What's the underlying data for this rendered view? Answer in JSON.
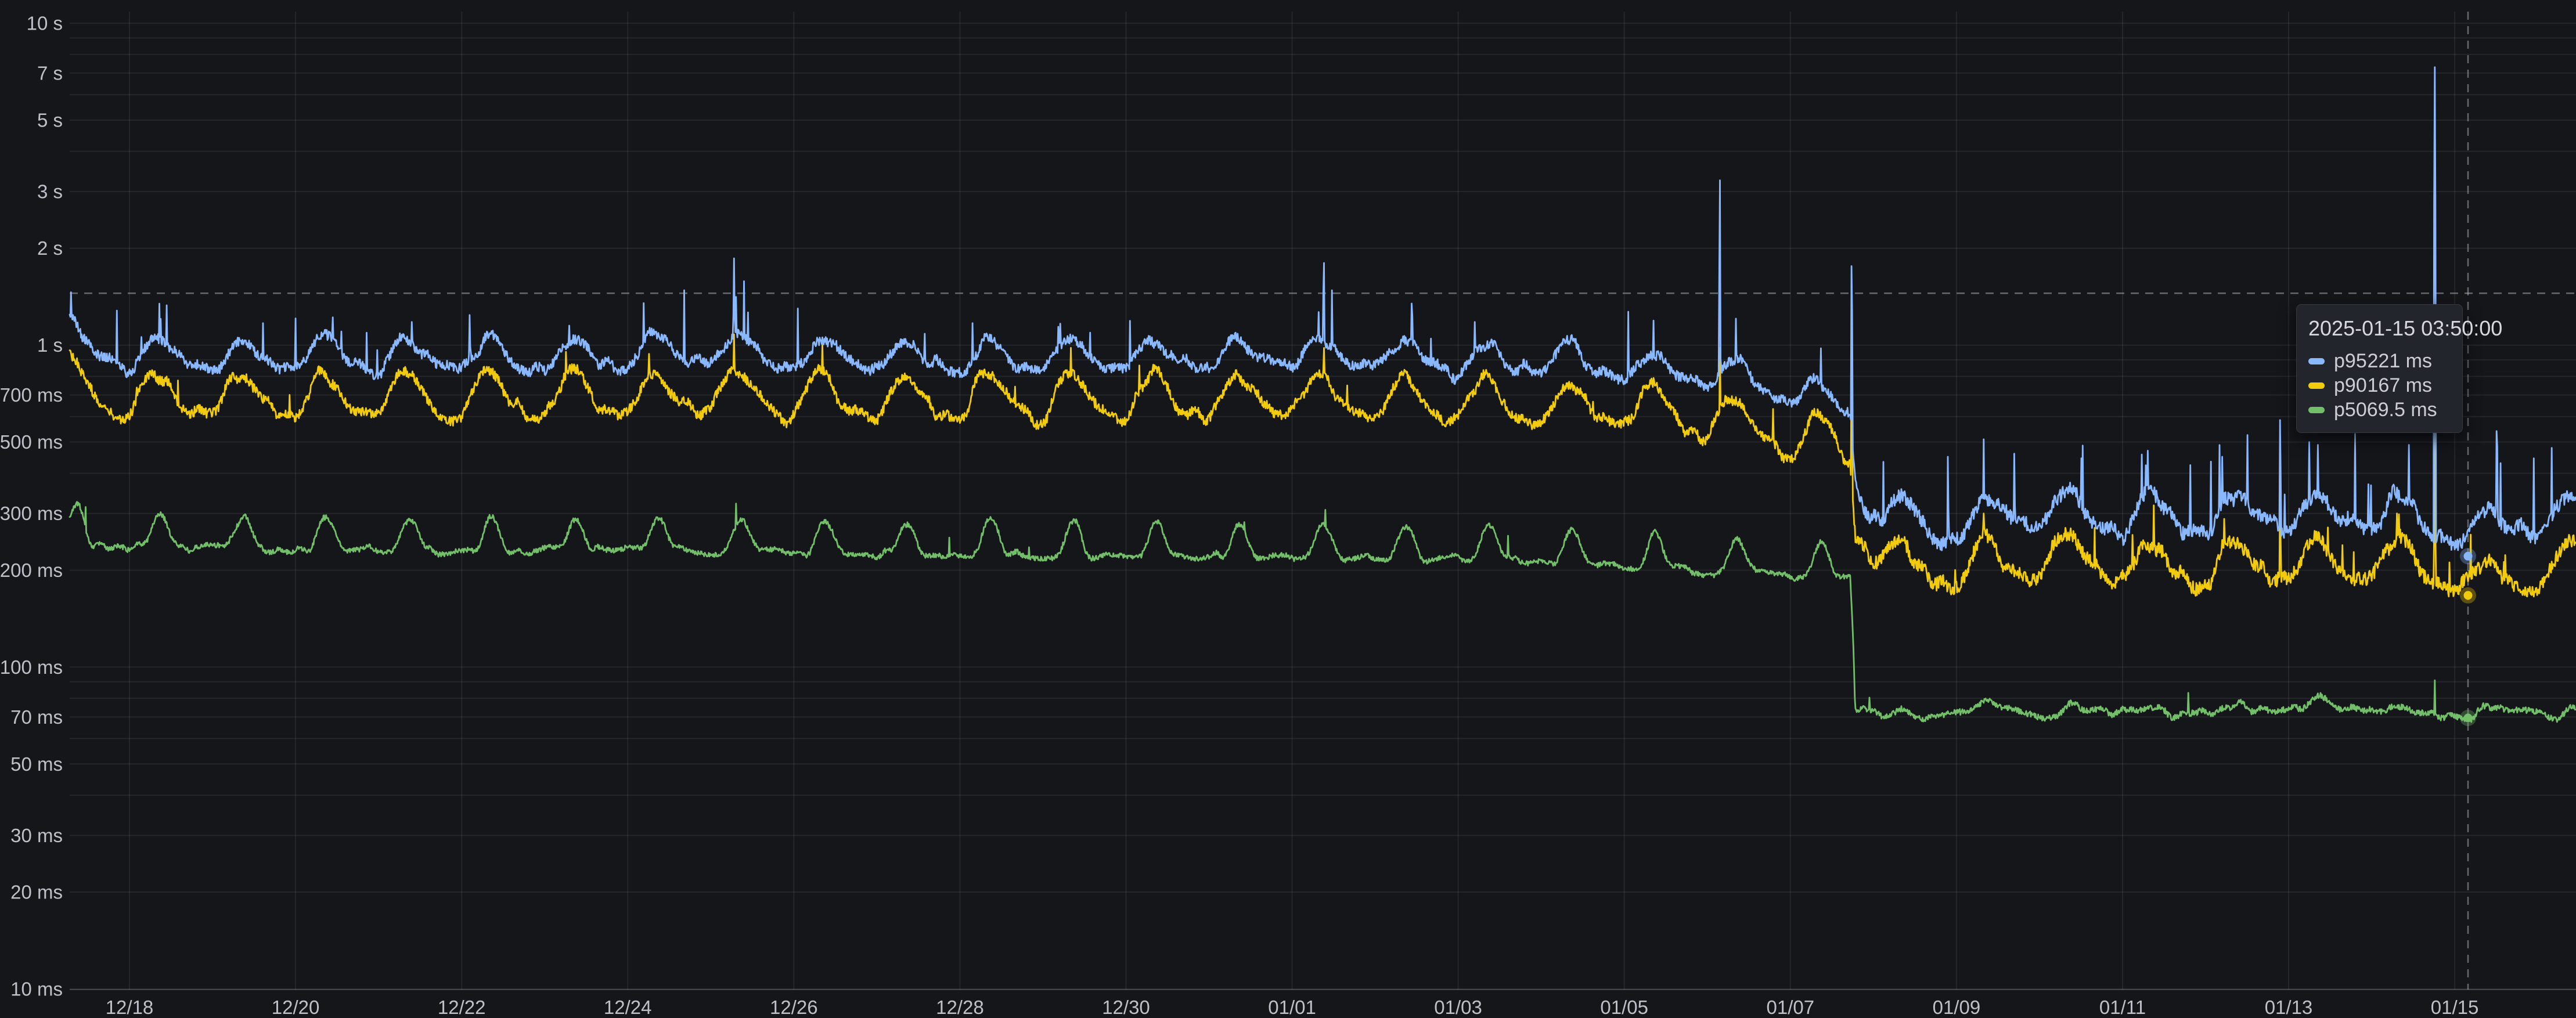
{
  "panel": {
    "background": "#15161a",
    "text_color": "#bfc1c9",
    "grid_color": "rgba(240,250,255,0.07)",
    "axis_line_color": "rgba(240,250,255,0.18)",
    "crosshair_color": "rgba(200,205,215,0.45)"
  },
  "chart_data": {
    "type": "line",
    "y_axis": {
      "scale": "log10",
      "unit": "ms",
      "min_ms": 10,
      "max_ms": 10000,
      "labeled_ticks": [
        {
          "ms": 10000,
          "label": "10 s"
        },
        {
          "ms": 7000,
          "label": "7 s"
        },
        {
          "ms": 5000,
          "label": "5 s"
        },
        {
          "ms": 3000,
          "label": "3 s"
        },
        {
          "ms": 2000,
          "label": "2 s"
        },
        {
          "ms": 1000,
          "label": "1 s"
        },
        {
          "ms": 700,
          "label": "700 ms"
        },
        {
          "ms": 500,
          "label": "500 ms"
        },
        {
          "ms": 300,
          "label": "300 ms"
        },
        {
          "ms": 200,
          "label": "200 ms"
        },
        {
          "ms": 100,
          "label": "100 ms"
        },
        {
          "ms": 70,
          "label": "70 ms"
        },
        {
          "ms": 50,
          "label": "50 ms"
        },
        {
          "ms": 30,
          "label": "30 ms"
        },
        {
          "ms": 20,
          "label": "20 ms"
        },
        {
          "ms": 10,
          "label": "10 ms"
        }
      ]
    },
    "x_axis": {
      "start_day": 0.28,
      "end_day": 30.46,
      "sample_step_day": 0.008,
      "ticks": [
        {
          "day": 1,
          "label": "12/18"
        },
        {
          "day": 3,
          "label": "12/20"
        },
        {
          "day": 5,
          "label": "12/22"
        },
        {
          "day": 7,
          "label": "12/24"
        },
        {
          "day": 9,
          "label": "12/26"
        },
        {
          "day": 11,
          "label": "12/28"
        },
        {
          "day": 13,
          "label": "12/30"
        },
        {
          "day": 15,
          "label": "01/01"
        },
        {
          "day": 17,
          "label": "01/03"
        },
        {
          "day": 19,
          "label": "01/05"
        },
        {
          "day": 21,
          "label": "01/07"
        },
        {
          "day": 23,
          "label": "01/09"
        },
        {
          "day": 25,
          "label": "01/11"
        },
        {
          "day": 27,
          "label": "01/13"
        },
        {
          "day": 29,
          "label": "01/15"
        }
      ]
    },
    "step_change_day": 21.75,
    "series": [
      {
        "name": "p95",
        "color": "#8AB8FF",
        "seed": 11,
        "base_keyframes_day_ms": [
          [
            0.28,
            1120
          ],
          [
            0.42,
            960
          ],
          [
            1,
            935
          ],
          [
            2,
            920
          ],
          [
            3,
            935
          ],
          [
            4,
            920
          ],
          [
            5,
            930
          ],
          [
            6,
            915
          ],
          [
            7,
            945
          ],
          [
            8,
            975
          ],
          [
            9,
            930
          ],
          [
            10,
            915
          ],
          [
            11,
            920
          ],
          [
            12,
            910
          ],
          [
            13,
            925
          ],
          [
            14,
            915
          ],
          [
            15,
            955
          ],
          [
            16,
            925
          ],
          [
            17,
            905
          ],
          [
            18,
            890
          ],
          [
            19,
            870
          ],
          [
            20,
            830
          ],
          [
            20.7,
            760
          ],
          [
            21.4,
            690
          ],
          [
            21.72,
            650
          ],
          [
            21.78,
            400
          ],
          [
            21.95,
            330
          ],
          [
            22.3,
            285
          ],
          [
            22.8,
            275
          ],
          [
            23.5,
            300
          ],
          [
            24.4,
            308
          ],
          [
            25.4,
            290
          ],
          [
            26.4,
            295
          ],
          [
            27.4,
            308
          ],
          [
            28.3,
            300
          ],
          [
            28.9,
            280
          ],
          [
            29.3,
            262
          ],
          [
            29.8,
            290
          ],
          [
            30.2,
            288
          ],
          [
            30.46,
            300
          ]
        ],
        "daily_wave_pre": {
          "amp": 0.105,
          "phase": 0.12,
          "harm": 0.3
        },
        "daily_wave_post": {
          "amp": 0.13,
          "phase": 0.12,
          "harm": 0.3
        },
        "noise_pre": {
          "smooth": 0.045,
          "jitter": 0.035,
          "spike_p": 0.006,
          "spike_gain": [
            1.12,
            1.35
          ]
        },
        "noise_post": {
          "smooth": 0.05,
          "jitter": 0.05,
          "spike_p": 0.02,
          "spike_gain": [
            1.15,
            1.8
          ]
        },
        "spikes_day_ms_w": [
          [
            0.3,
            1460,
            0.018
          ],
          [
            0.85,
            1280,
            0.022
          ],
          [
            1.45,
            1330,
            0.025
          ],
          [
            3.0,
            1210,
            0.025
          ],
          [
            3.45,
            1220,
            0.018
          ],
          [
            4.4,
            1180,
            0.02
          ],
          [
            5.1,
            1240,
            0.025
          ],
          [
            6.3,
            1150,
            0.02
          ],
          [
            7.68,
            1480,
            0.022
          ],
          [
            8.28,
            1860,
            0.03
          ],
          [
            8.4,
            1580,
            0.018
          ],
          [
            9.05,
            1300,
            0.022
          ],
          [
            11.15,
            1170,
            0.02
          ],
          [
            13.05,
            1190,
            0.022
          ],
          [
            15.38,
            1800,
            0.026
          ],
          [
            15.48,
            1480,
            0.016
          ],
          [
            17.2,
            1180,
            0.02
          ],
          [
            19.05,
            1270,
            0.022
          ],
          [
            20.15,
            3250,
            0.016
          ],
          [
            21.74,
            1760,
            0.018
          ],
          [
            22.9,
            450,
            0.016
          ],
          [
            23.33,
            510,
            0.016
          ],
          [
            23.7,
            460,
            0.016
          ],
          [
            24.5,
            445,
            0.016
          ],
          [
            25.3,
            470,
            0.016
          ],
          [
            26.2,
            450,
            0.016
          ],
          [
            26.9,
            585,
            0.016
          ],
          [
            27.25,
            500,
            0.016
          ],
          [
            27.8,
            530,
            0.016
          ],
          [
            28.45,
            490,
            0.016
          ],
          [
            28.76,
            7300,
            0.015
          ],
          [
            29.55,
            430,
            0.016
          ],
          [
            29.95,
            445,
            0.016
          ]
        ]
      },
      {
        "name": "p90",
        "color": "#F2CC0C",
        "seed": 23,
        "base_keyframes_day_ms": [
          [
            0.28,
            830
          ],
          [
            0.5,
            710
          ],
          [
            1,
            690
          ],
          [
            3,
            690
          ],
          [
            5,
            680
          ],
          [
            7,
            700
          ],
          [
            8,
            725
          ],
          [
            9,
            690
          ],
          [
            11,
            680
          ],
          [
            13,
            680
          ],
          [
            15,
            705
          ],
          [
            16,
            685
          ],
          [
            17,
            670
          ],
          [
            18,
            655
          ],
          [
            19,
            640
          ],
          [
            20,
            600
          ],
          [
            20.7,
            545
          ],
          [
            21.4,
            500
          ],
          [
            21.72,
            480
          ],
          [
            21.78,
            290
          ],
          [
            21.95,
            250
          ],
          [
            22.3,
            210
          ],
          [
            22.8,
            200
          ],
          [
            23.5,
            215
          ],
          [
            24.4,
            222
          ],
          [
            25.4,
            205
          ],
          [
            26.4,
            208
          ],
          [
            27.4,
            218
          ],
          [
            28.3,
            212
          ],
          [
            28.9,
            195
          ],
          [
            29.3,
            178
          ],
          [
            29.8,
            200
          ],
          [
            30.2,
            195
          ],
          [
            30.46,
            225
          ]
        ],
        "daily_wave_pre": {
          "amp": 0.155,
          "phase": 0.1,
          "harm": 0.25
        },
        "daily_wave_post": {
          "amp": 0.15,
          "phase": 0.1,
          "harm": 0.25
        },
        "noise_pre": {
          "smooth": 0.05,
          "jitter": 0.035,
          "spike_p": 0.004,
          "spike_gain": [
            1.1,
            1.25
          ]
        },
        "noise_post": {
          "smooth": 0.05,
          "jitter": 0.05,
          "spike_p": 0.012,
          "spike_gain": [
            1.1,
            1.5
          ]
        },
        "spikes_day_ms_w": [
          [
            0.3,
            920,
            0.02
          ],
          [
            8.28,
            1080,
            0.03
          ],
          [
            15.38,
            980,
            0.025
          ],
          [
            20.15,
            980,
            0.015
          ],
          [
            21.74,
            900,
            0.02
          ],
          [
            23.33,
            300,
            0.02
          ],
          [
            26.9,
            330,
            0.02
          ],
          [
            28.3,
            300,
            0.015
          ],
          [
            28.76,
            550,
            0.018
          ]
        ]
      },
      {
        "name": "p50",
        "color": "#73BF69",
        "seed": 37,
        "base_keyframes_day_ms": [
          [
            0.28,
            262
          ],
          [
            0.5,
            247
          ],
          [
            1,
            244
          ],
          [
            3,
            240
          ],
          [
            5,
            237
          ],
          [
            7,
            240
          ],
          [
            9,
            235
          ],
          [
            11,
            232
          ],
          [
            13,
            228
          ],
          [
            15,
            231
          ],
          [
            17,
            224
          ],
          [
            18,
            220
          ],
          [
            19,
            213
          ],
          [
            20,
            205
          ],
          [
            21,
            199
          ],
          [
            21.72,
            196
          ],
          [
            21.78,
            74
          ],
          [
            22.3,
            72
          ],
          [
            22.6,
            69
          ],
          [
            23,
            73
          ],
          [
            23.5,
            76
          ],
          [
            24,
            72
          ],
          [
            24.5,
            73
          ],
          [
            25,
            74
          ],
          [
            25.5,
            72
          ],
          [
            26,
            73
          ],
          [
            26.5,
            74
          ],
          [
            27,
            75
          ],
          [
            27.3,
            78
          ],
          [
            27.7,
            76
          ],
          [
            28.2,
            74
          ],
          [
            28.7,
            73
          ],
          [
            29.16,
            70
          ],
          [
            29.5,
            75
          ],
          [
            29.9,
            74
          ],
          [
            30.25,
            70
          ],
          [
            30.46,
            73
          ]
        ],
        "daily_wave_pre": {
          "type": "bump",
          "amp": 0.26,
          "exp": 3,
          "phase": 0.12,
          "shift": -0.035
        },
        "daily_wave_post": {
          "type": "bump",
          "amp": 0.06,
          "exp": 3,
          "phase": 0.12,
          "shift": -0.015
        },
        "noise_pre": {
          "smooth": 0.03,
          "jitter": 0.018,
          "spike_p": 0.003,
          "spike_gain": [
            1.08,
            1.18
          ]
        },
        "noise_post": {
          "smooth": 0.025,
          "jitter": 0.022,
          "spike_p": 0.004,
          "spike_gain": [
            1.06,
            1.15
          ]
        },
        "spikes_day_ms_w": [
          [
            8.3,
            322,
            0.03
          ],
          [
            15.4,
            308,
            0.025
          ],
          [
            28.76,
            91,
            0.02
          ]
        ]
      }
    ],
    "crosshair": {
      "day": 29.16,
      "value_ms": 1450
    },
    "hover_markers": [
      {
        "series": "p95",
        "value_ms": 221
      },
      {
        "series": "p90",
        "value_ms": 167
      },
      {
        "series": "p50",
        "value_ms": 69.5
      }
    ]
  },
  "tooltip": {
    "timestamp": "2025-01-15 03:50:00",
    "rows": [
      {
        "series": "p95",
        "value": "221 ms",
        "color": "#8AB8FF"
      },
      {
        "series": "p90",
        "value": "167 ms",
        "color": "#F2CC0C"
      },
      {
        "series": "p50",
        "value": "69.5 ms",
        "color": "#73BF69"
      }
    ]
  }
}
